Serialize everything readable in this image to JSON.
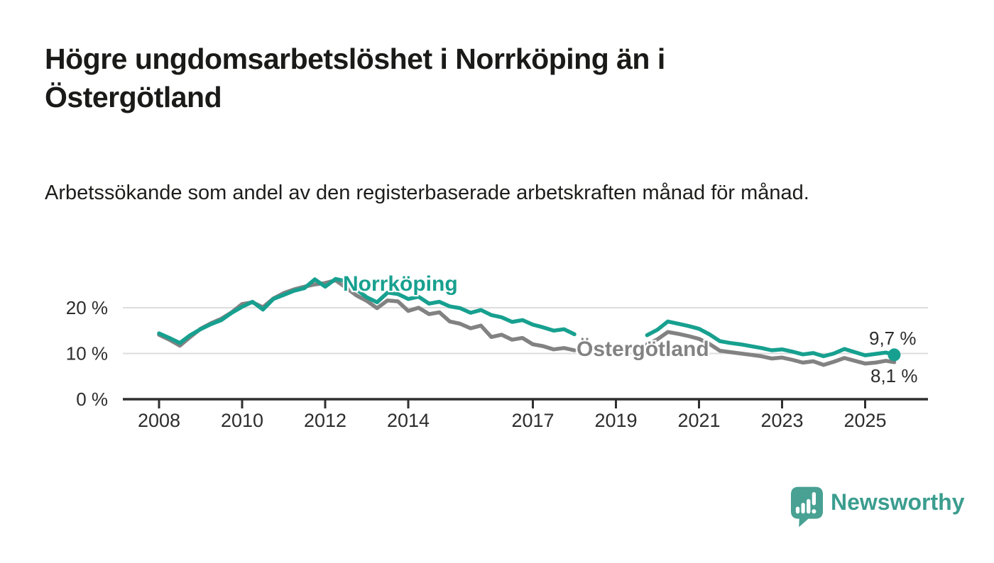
{
  "header": {
    "title": "Högre ungdomsarbetslöshet i Norrköping än i Östergötland",
    "subtitle": "Arbetssökande som andel av den registerbaserade arbetskraften månad för månad."
  },
  "chart_data": {
    "type": "line",
    "title": "Högre ungdomsarbetslöshet i Norrköping än i Östergötland",
    "subtitle": "Arbetssökande som andel av den registerbaserade arbetskraften månad för månad.",
    "unit": "%",
    "ylim": [
      0,
      27
    ],
    "xlim": [
      2007.1,
      2026.5
    ],
    "grid": "horizontal",
    "legend_position": "inline-labels",
    "note": "data gap between 2018 and late 2019",
    "x": [
      2008,
      2008.25,
      2008.5,
      2008.75,
      2009,
      2009.25,
      2009.5,
      2009.75,
      2010,
      2010.25,
      2010.5,
      2010.75,
      2011,
      2011.25,
      2011.5,
      2011.75,
      2012,
      2012.25,
      2012.5,
      2012.75,
      2013,
      2013.25,
      2013.5,
      2013.75,
      2014,
      2014.25,
      2014.5,
      2014.75,
      2015,
      2015.25,
      2015.5,
      2015.75,
      2016,
      2016.25,
      2016.5,
      2016.75,
      2017,
      2017.25,
      2017.5,
      2017.75,
      2018,
      2019.75,
      2020,
      2020.25,
      2020.5,
      2020.75,
      2021,
      2021.25,
      2021.5,
      2021.75,
      2022,
      2022.25,
      2022.5,
      2022.75,
      2023,
      2023.25,
      2023.5,
      2023.75,
      2024,
      2024.25,
      2024.5,
      2024.75,
      2025,
      2025.25,
      2025.5,
      2025.7
    ],
    "series": [
      {
        "name": "Norrköping",
        "color": "#17a08f",
        "values": [
          14.4,
          13.4,
          12.3,
          14.0,
          15.3,
          16.4,
          17.3,
          18.9,
          20.2,
          21.3,
          19.6,
          21.9,
          22.8,
          23.7,
          24.3,
          26.2,
          24.6,
          26.3,
          25.8,
          24.0,
          22.3,
          21.2,
          23.3,
          23.0,
          21.9,
          22.4,
          20.9,
          21.3,
          20.3,
          19.9,
          18.9,
          19.5,
          18.4,
          17.9,
          16.9,
          17.3,
          16.3,
          15.7,
          15.0,
          15.3,
          14.2,
          14.0,
          15.2,
          17.0,
          16.5,
          16.0,
          15.4,
          14.2,
          12.7,
          12.3,
          12.0,
          11.6,
          11.2,
          10.7,
          10.9,
          10.4,
          9.8,
          10.1,
          9.4,
          10.0,
          11.0,
          10.3,
          9.6,
          9.9,
          10.2,
          9.7
        ]
      },
      {
        "name": "Östergötland",
        "color": "#828282",
        "values": [
          14.1,
          13.0,
          11.7,
          13.6,
          15.4,
          16.6,
          17.6,
          19.0,
          20.8,
          21.2,
          20.1,
          22.0,
          23.2,
          24.0,
          24.6,
          25.1,
          25.4,
          26.0,
          24.4,
          22.7,
          21.5,
          19.9,
          21.6,
          21.4,
          19.3,
          20.0,
          18.6,
          19.0,
          17.0,
          16.5,
          15.5,
          16.1,
          13.6,
          14.1,
          13.0,
          13.4,
          12.0,
          11.6,
          10.9,
          11.2,
          10.7,
          12.0,
          13.1,
          14.7,
          14.3,
          13.8,
          13.2,
          12.1,
          10.6,
          10.3,
          10.0,
          9.7,
          9.4,
          8.9,
          9.1,
          8.6,
          8.0,
          8.3,
          7.5,
          8.2,
          9.0,
          8.4,
          7.8,
          8.0,
          8.4,
          8.1
        ]
      }
    ],
    "yticks": [
      {
        "value": 0,
        "label": "0 %"
      },
      {
        "value": 10,
        "label": "10 %"
      },
      {
        "value": 20,
        "label": "20 %"
      }
    ],
    "xticks": [
      {
        "value": 2008,
        "label": "2008"
      },
      {
        "value": 2010,
        "label": "2010"
      },
      {
        "value": 2012,
        "label": "2012"
      },
      {
        "value": 2014,
        "label": "2014"
      },
      {
        "value": 2017,
        "label": "2017"
      },
      {
        "value": 2019,
        "label": "2019"
      },
      {
        "value": 2021,
        "label": "2021"
      },
      {
        "value": 2023,
        "label": "2023"
      },
      {
        "value": 2025,
        "label": "2025"
      }
    ],
    "end_labels": [
      {
        "series": "Norrköping",
        "label": "9,7 %"
      },
      {
        "series": "Östergötland",
        "label": "8,1 %"
      }
    ],
    "colors": {
      "grid": "#dddddd",
      "axis": "#2f2f2f",
      "tick_text": "#2d2d2d"
    }
  },
  "footer": {
    "brand": "Newsworthy",
    "logo_color": "#48a193"
  }
}
